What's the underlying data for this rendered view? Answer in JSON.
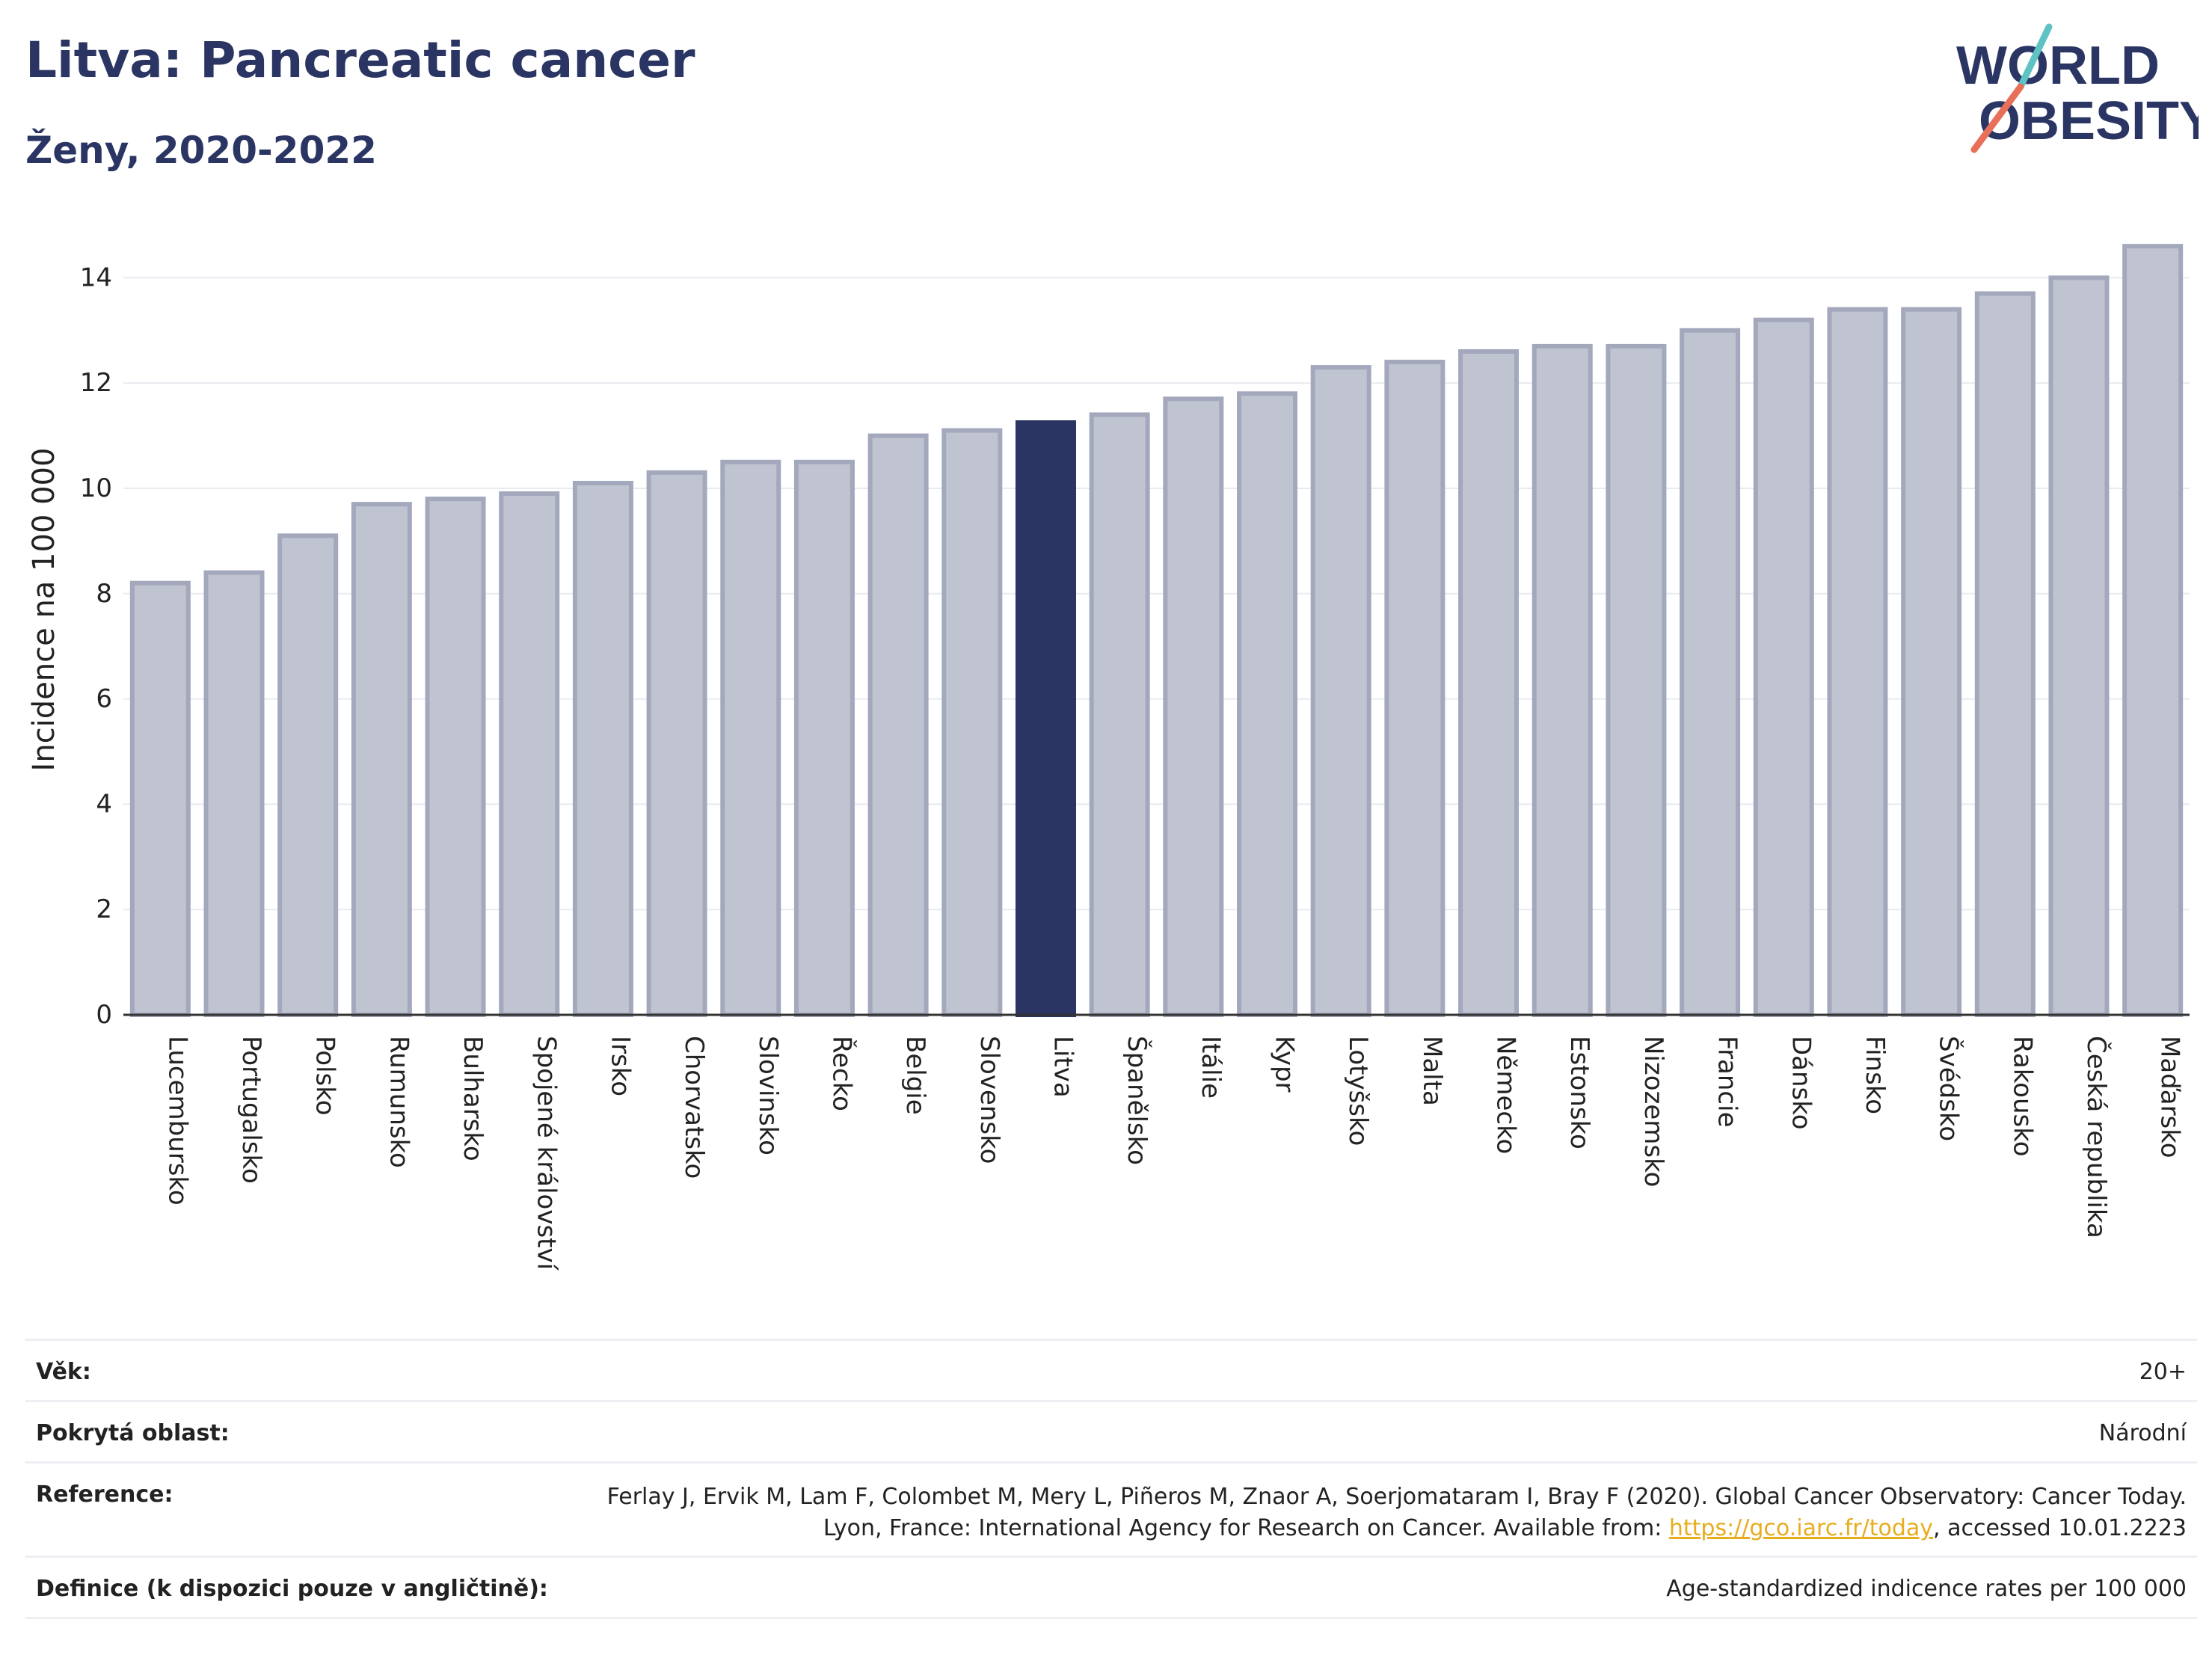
{
  "header": {
    "title": "Litva: Pancreatic cancer",
    "subtitle": "Ženy, 2020-2022"
  },
  "logo": {
    "line1": "WORLD",
    "line2": "OBESITY",
    "slash_colors": [
      "#5fc3c4",
      "#e8705a"
    ],
    "text_color": "#2a3563"
  },
  "chart_data": {
    "type": "bar",
    "categories": [
      "Lucembursko",
      "Portugalsko",
      "Polsko",
      "Rumunsko",
      "Bulharsko",
      "Spojené království",
      "Irsko",
      "Chorvatsko",
      "Slovinsko",
      "Řecko",
      "Belgie",
      "Slovensko",
      "Litva",
      "Španělsko",
      "Itálie",
      "Kypr",
      "Lotyšsko",
      "Malta",
      "Německo",
      "Estonsko",
      "Nizozemsko",
      "Francie",
      "Dánsko",
      "Finsko",
      "Švédsko",
      "Rakousko",
      "Česká republika",
      "Maďarsko"
    ],
    "values": [
      8.2,
      8.4,
      9.1,
      9.7,
      9.8,
      9.9,
      10.1,
      10.3,
      10.5,
      10.5,
      11.0,
      11.1,
      11.25,
      11.4,
      11.7,
      11.8,
      12.3,
      12.4,
      12.6,
      12.7,
      12.7,
      13.0,
      13.2,
      13.4,
      13.4,
      13.7,
      14.0,
      14.6
    ],
    "highlight": "Litva",
    "ylabel": "Incidence na 100 000",
    "yticks": [
      0,
      2,
      4,
      6,
      8,
      10,
      12,
      14
    ],
    "ylim": [
      0,
      15.2
    ],
    "grid": true,
    "colors": {
      "bar_fill": "#c0c3d0",
      "bar_edge": "#a3a8bd",
      "highlight": "#2a3563"
    }
  },
  "meta": {
    "age_label": "Věk:",
    "age_value": "20+",
    "area_label": "Pokrytá oblast:",
    "area_value": "Národní",
    "reference_label": "Reference:",
    "reference_text_before": "Ferlay J, Ervik M, Lam F, Colombet M, Mery L, Piñeros M, Znaor A, Soerjomataram I, Bray F (2020). Global Cancer Observatory: Cancer Today. Lyon, France: International Agency for Research on Cancer. Available from: ",
    "reference_link": "https://gco.iarc.fr/today",
    "reference_text_after": ", accessed 10.01.2223",
    "definition_label": "Definice (k dispozici pouze v angličtině):",
    "definition_value": "Age-standardized indicence rates per 100 000"
  }
}
